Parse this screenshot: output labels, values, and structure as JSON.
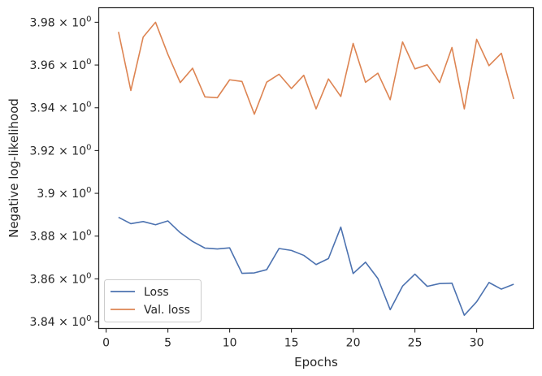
{
  "chart_data": {
    "type": "line",
    "title": "",
    "xlabel": "Epochs",
    "ylabel": "Negative log-likelihood",
    "xlim": [
      -0.6,
      34.6
    ],
    "ylim": [
      3.8368,
      3.9868
    ],
    "x_ticks": [
      0,
      5,
      10,
      15,
      20,
      25,
      30
    ],
    "y_ticks": [
      3.84,
      3.86,
      3.88,
      3.9,
      3.92,
      3.94,
      3.96,
      3.98
    ],
    "y_tick_labels": [
      "3.84",
      "3.86",
      "3.88",
      "3.9",
      "3.92",
      "3.94",
      "3.96",
      "3.98"
    ],
    "y_tick_suffix": "× 10",
    "y_tick_exponent": "0",
    "grid": false,
    "legend": "lower-left",
    "x": [
      1,
      2,
      3,
      4,
      5,
      6,
      7,
      8,
      9,
      10,
      11,
      12,
      13,
      14,
      15,
      16,
      17,
      18,
      19,
      20,
      21,
      22,
      23,
      24,
      25,
      26,
      27,
      28,
      29,
      30,
      31,
      32,
      33
    ],
    "series": [
      {
        "name": "Loss",
        "color": "#4c72b0",
        "values": [
          3.8888,
          3.8858,
          3.8868,
          3.8853,
          3.8871,
          3.8816,
          3.8775,
          3.8744,
          3.874,
          3.8745,
          3.8626,
          3.8628,
          3.8643,
          3.8742,
          3.8733,
          3.871,
          3.8667,
          3.8695,
          3.8842,
          3.8625,
          3.8678,
          3.8602,
          3.8456,
          3.8566,
          3.8622,
          3.8565,
          3.8578,
          3.858,
          3.843,
          3.8493,
          3.8583,
          3.8552,
          3.8575
        ]
      },
      {
        "name": "Val. loss",
        "color": "#dd8452",
        "values": [
          3.9755,
          3.9481,
          3.9731,
          3.98,
          3.965,
          3.9518,
          3.9585,
          3.9451,
          3.9447,
          3.9531,
          3.9523,
          3.937,
          3.952,
          3.9557,
          3.949,
          3.9552,
          3.9395,
          3.9535,
          3.9453,
          3.9701,
          3.9519,
          3.9562,
          3.9438,
          3.9708,
          3.9582,
          3.9601,
          3.9518,
          3.9682,
          3.9395,
          3.972,
          3.9597,
          3.9655,
          3.9441
        ]
      }
    ]
  }
}
